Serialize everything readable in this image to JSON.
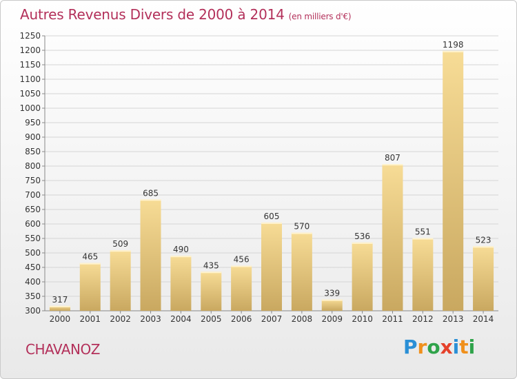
{
  "header": {
    "title": "Autres Revenus Divers de 2000 à 2014",
    "unit": "(en milliers d'€)"
  },
  "footer": {
    "place": "CHAVANOZ",
    "logo": [
      "P",
      "r",
      "o",
      "x",
      "i",
      "t",
      "i"
    ]
  },
  "colors": {
    "title": "#b3305a",
    "bar_top": "#f7dc96",
    "bar_bottom": "#c9a860",
    "grid": "#d5d5d5"
  },
  "chart_data": {
    "type": "bar",
    "title": "Autres Revenus Divers de 2000 à 2014",
    "xlabel": "",
    "ylabel": "",
    "ylim": [
      300,
      1250
    ],
    "yticks": [
      300,
      350,
      400,
      450,
      500,
      550,
      600,
      650,
      700,
      750,
      800,
      850,
      900,
      950,
      1000,
      1050,
      1100,
      1150,
      1200,
      1250
    ],
    "categories": [
      "2000",
      "2001",
      "2002",
      "2003",
      "2004",
      "2005",
      "2006",
      "2007",
      "2008",
      "2009",
      "2010",
      "2011",
      "2012",
      "2013",
      "2014"
    ],
    "values": [
      317,
      465,
      509,
      685,
      490,
      435,
      456,
      605,
      570,
      339,
      536,
      807,
      551,
      1198,
      523
    ],
    "grid": true,
    "legend": "none"
  }
}
